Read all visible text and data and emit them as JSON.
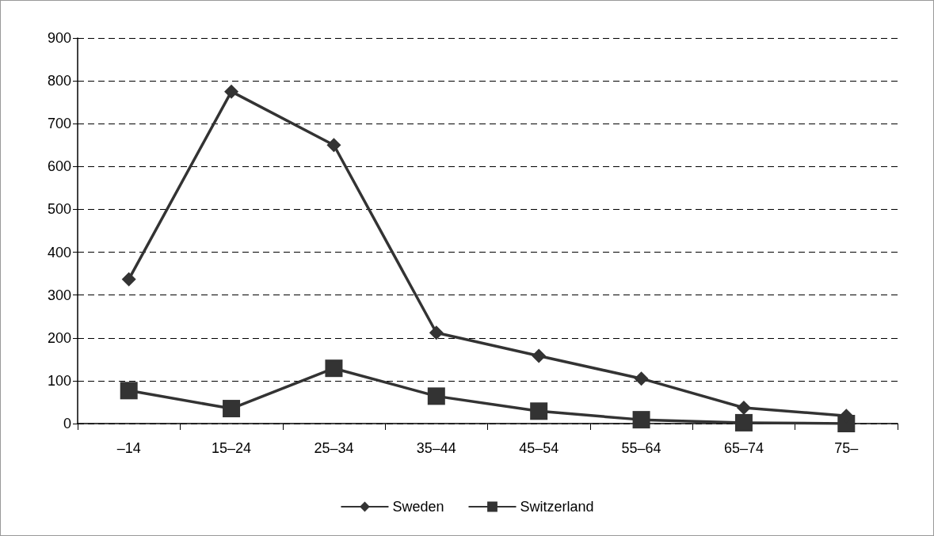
{
  "chart_data": {
    "type": "line",
    "categories": [
      "–14",
      "15–24",
      "25–34",
      "35–44",
      "45–54",
      "55–64",
      "65–74",
      "75–"
    ],
    "series": [
      {
        "name": "Sweden",
        "color": "#333333",
        "marker": "diamond",
        "values": [
          337,
          775,
          650,
          212,
          158,
          105,
          37,
          18
        ]
      },
      {
        "name": "Switzerland",
        "color": "#333333",
        "marker": "square",
        "values": [
          77,
          35,
          129,
          64,
          29,
          9,
          2,
          0
        ]
      }
    ],
    "ylim": [
      0,
      900
    ],
    "yticks": [
      0,
      100,
      200,
      300,
      400,
      500,
      600,
      700,
      800,
      900
    ],
    "grid": "y",
    "legend": "bottom",
    "line_style": "solid"
  }
}
